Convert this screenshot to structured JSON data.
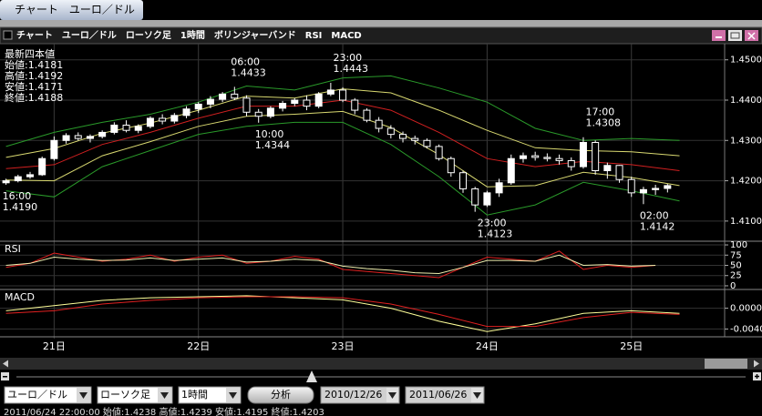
{
  "tab": "チャート　ユーロ／ドル",
  "window_title": "チャート　ユーロ／ドル　ローソク足　1時間　ボリンジャーバンド　RSI　MACD",
  "info": [
    "最新四本値",
    "始値:1.4181",
    "高値:1.4192",
    "安値:1.4171",
    "終値:1.4188"
  ],
  "toolbar": {
    "pair": "ユーロ／ドル",
    "chart_kind": "ローソク足",
    "interval": "1時間",
    "analyze": "分析",
    "from": "2010/12/26",
    "to": "2011/06/26"
  },
  "status": "2011/06/24 22:00:00 始値:1.4238 高値:1.4239 安値:1.4195 終値:1.4203",
  "chart_data": [
    {
      "type": "candlestick",
      "xlim": [
        -9,
        111.5
      ],
      "xticks": [
        {
          "value": 0,
          "label": "21日"
        },
        {
          "value": 24,
          "label": "22日"
        },
        {
          "value": 48,
          "label": "23日"
        },
        {
          "value": 72,
          "label": "24日"
        },
        {
          "value": 96,
          "label": "25日"
        }
      ],
      "ylim": [
        1.405,
        1.454
      ],
      "yticks": [
        {
          "value": 1.41,
          "label": "1.4100"
        },
        {
          "value": 1.42,
          "label": "1.4200"
        },
        {
          "value": 1.43,
          "label": "1.4300"
        },
        {
          "value": 1.44,
          "label": "1.4400"
        },
        {
          "value": 1.45,
          "label": "1.4500"
        }
      ],
      "grid": true,
      "up_color": "#ffffff",
      "down_color": "#000000",
      "x": [
        -8,
        -6,
        -4,
        -2,
        0,
        2,
        4,
        6,
        8,
        10,
        12,
        14,
        16,
        18,
        20,
        22,
        24,
        26,
        28,
        30,
        32,
        34,
        36,
        38,
        40,
        42,
        44,
        46,
        48,
        50,
        52,
        54,
        56,
        58,
        60,
        62,
        64,
        66,
        68,
        70,
        72,
        74,
        76,
        78,
        80,
        82,
        84,
        86,
        88,
        90,
        92,
        94,
        96,
        98,
        100,
        102
      ],
      "open": [
        1.4195,
        1.42,
        1.421,
        1.4215,
        1.4255,
        1.43,
        1.4312,
        1.4305,
        1.431,
        1.432,
        1.4338,
        1.4325,
        1.4335,
        1.4355,
        1.4348,
        1.4362,
        1.4378,
        1.439,
        1.4402,
        1.4415,
        1.4405,
        1.437,
        1.436,
        1.438,
        1.4392,
        1.44,
        1.4385,
        1.4415,
        1.4425,
        1.44,
        1.4375,
        1.435,
        1.433,
        1.4315,
        1.4305,
        1.43,
        1.4285,
        1.4255,
        1.422,
        1.418,
        1.414,
        1.417,
        1.4195,
        1.4255,
        1.4262,
        1.4258,
        1.4255,
        1.425,
        1.4235,
        1.4295,
        1.4225,
        1.4238,
        1.4203,
        1.417,
        1.4178,
        1.4181
      ],
      "high": [
        1.4205,
        1.4215,
        1.4222,
        1.426,
        1.431,
        1.4318,
        1.432,
        1.4315,
        1.4325,
        1.4345,
        1.435,
        1.434,
        1.436,
        1.4365,
        1.4368,
        1.4385,
        1.4395,
        1.441,
        1.442,
        1.4433,
        1.4412,
        1.4378,
        1.4385,
        1.4398,
        1.4405,
        1.4412,
        1.442,
        1.4443,
        1.4432,
        1.4405,
        1.438,
        1.4358,
        1.4338,
        1.4322,
        1.4312,
        1.4305,
        1.429,
        1.426,
        1.4225,
        1.4185,
        1.4175,
        1.4205,
        1.4265,
        1.427,
        1.4272,
        1.4268,
        1.4265,
        1.4258,
        1.4308,
        1.43,
        1.4245,
        1.4239,
        1.421,
        1.4185,
        1.419,
        1.4192
      ],
      "low": [
        1.419,
        1.4196,
        1.4205,
        1.4212,
        1.425,
        1.4292,
        1.43,
        1.4295,
        1.4305,
        1.4315,
        1.432,
        1.4318,
        1.433,
        1.434,
        1.4342,
        1.4355,
        1.4368,
        1.438,
        1.4395,
        1.44,
        1.436,
        1.4344,
        1.4355,
        1.4372,
        1.4385,
        1.4375,
        1.438,
        1.441,
        1.4395,
        1.4365,
        1.4345,
        1.432,
        1.4305,
        1.4295,
        1.429,
        1.428,
        1.425,
        1.421,
        1.417,
        1.4123,
        1.4135,
        1.416,
        1.419,
        1.4245,
        1.425,
        1.4248,
        1.424,
        1.4225,
        1.423,
        1.4215,
        1.4205,
        1.4195,
        1.416,
        1.4142,
        1.4165,
        1.4171
      ],
      "close": [
        1.42,
        1.421,
        1.4215,
        1.4255,
        1.43,
        1.4312,
        1.4305,
        1.431,
        1.432,
        1.4338,
        1.4325,
        1.4335,
        1.4355,
        1.4348,
        1.4362,
        1.4378,
        1.439,
        1.4402,
        1.4415,
        1.4405,
        1.437,
        1.436,
        1.438,
        1.4392,
        1.44,
        1.4385,
        1.4415,
        1.4425,
        1.44,
        1.4375,
        1.435,
        1.433,
        1.4315,
        1.4305,
        1.43,
        1.4285,
        1.4255,
        1.422,
        1.418,
        1.414,
        1.417,
        1.4195,
        1.4255,
        1.4262,
        1.4258,
        1.4255,
        1.425,
        1.4235,
        1.4295,
        1.4225,
        1.4238,
        1.4203,
        1.417,
        1.4178,
        1.4181,
        1.4188
      ],
      "series": [
        {
          "color": "#2a9a2a",
          "x": [
            -8,
            0,
            8,
            16,
            24,
            32,
            40,
            48,
            56,
            64,
            72,
            80,
            88,
            96,
            104
          ],
          "values": [
            1.4285,
            1.432,
            1.4345,
            1.4365,
            1.4395,
            1.4435,
            1.4425,
            1.4455,
            1.446,
            1.443,
            1.4395,
            1.433,
            1.43,
            1.4305,
            1.43
          ]
        },
        {
          "color": "#d8d870",
          "x": [
            -8,
            0,
            8,
            16,
            24,
            32,
            40,
            48,
            56,
            64,
            72,
            80,
            88,
            96,
            104
          ],
          "values": [
            1.4258,
            1.428,
            1.4318,
            1.4343,
            1.4375,
            1.441,
            1.4405,
            1.4428,
            1.4418,
            1.4375,
            1.4325,
            1.4282,
            1.4275,
            1.4272,
            1.4262
          ]
        },
        {
          "color": "#d02020",
          "x": [
            -8,
            0,
            8,
            16,
            24,
            32,
            40,
            48,
            56,
            64,
            72,
            80,
            88,
            96,
            104
          ],
          "values": [
            1.423,
            1.424,
            1.429,
            1.432,
            1.4355,
            1.4385,
            1.4385,
            1.44,
            1.4375,
            1.432,
            1.4255,
            1.4235,
            1.4248,
            1.424,
            1.4225
          ]
        },
        {
          "color": "#d8d870",
          "x": [
            -8,
            0,
            8,
            16,
            24,
            32,
            40,
            48,
            56,
            64,
            72,
            80,
            88,
            96,
            104
          ],
          "values": [
            1.4202,
            1.42,
            1.4262,
            1.4297,
            1.4335,
            1.436,
            1.4365,
            1.4372,
            1.4332,
            1.4265,
            1.4185,
            1.4188,
            1.4221,
            1.4208,
            1.4188
          ]
        },
        {
          "color": "#2a9a2a",
          "x": [
            -8,
            0,
            8,
            16,
            24,
            32,
            40,
            48,
            56,
            64,
            72,
            80,
            88,
            96,
            104
          ],
          "values": [
            1.4175,
            1.416,
            1.4235,
            1.4275,
            1.4315,
            1.4335,
            1.4345,
            1.4345,
            1.429,
            1.421,
            1.4115,
            1.414,
            1.4196,
            1.4175,
            1.415
          ]
        }
      ],
      "annotations": [
        {
          "time": "16:00",
          "price": {
            "value": 1.419,
            "label": "1.4190"
          },
          "x": -8
        },
        {
          "time": "06:00",
          "price": 1.4433,
          "x": 30
        },
        {
          "time": "10:00",
          "price": 1.4344,
          "x": 34
        },
        {
          "time": "23:00",
          "price": 1.4443,
          "x": 47
        },
        {
          "time": "23:00",
          "price": 1.4123,
          "x": 71
        },
        {
          "time": "17:00",
          "price": 1.4308,
          "x": 89
        },
        {
          "time": "02:00",
          "price": 1.4142,
          "x": 98
        }
      ]
    },
    {
      "type": "line",
      "label": "RSI",
      "xlim": [
        -9,
        111.5
      ],
      "ylim": [
        -9,
        109
      ],
      "yticks": [
        0,
        25,
        50,
        75,
        100
      ],
      "grid": true,
      "series": [
        {
          "color": "#e02020",
          "x": [
            -8,
            -4,
            0,
            4,
            8,
            12,
            16,
            20,
            24,
            28,
            32,
            36,
            40,
            44,
            48,
            52,
            56,
            60,
            64,
            68,
            72,
            76,
            80,
            84,
            88,
            92,
            96,
            100
          ],
          "values": [
            45,
            55,
            80,
            70,
            60,
            65,
            75,
            60,
            70,
            75,
            55,
            60,
            72,
            65,
            40,
            35,
            30,
            25,
            20,
            45,
            70,
            65,
            60,
            85,
            40,
            50,
            45,
            50
          ]
        },
        {
          "color": "#f0f0b0",
          "x": [
            -8,
            -4,
            0,
            4,
            8,
            12,
            16,
            20,
            24,
            28,
            32,
            36,
            40,
            44,
            48,
            52,
            56,
            60,
            64,
            68,
            72,
            76,
            80,
            84,
            88,
            92,
            96,
            100
          ],
          "values": [
            50,
            55,
            70,
            65,
            62,
            63,
            68,
            62,
            65,
            68,
            58,
            60,
            65,
            62,
            48,
            42,
            38,
            32,
            30,
            45,
            62,
            62,
            60,
            75,
            50,
            52,
            48,
            50
          ]
        }
      ]
    },
    {
      "type": "line",
      "label": "MACD",
      "xlim": [
        -9,
        111.5
      ],
      "ylim": [
        -0.0055,
        0.0036
      ],
      "yticks": [
        {
          "value": -0.004,
          "label": "-0.0040"
        },
        {
          "value": 0,
          "label": "0.0000"
        }
      ],
      "grid": true,
      "series": [
        {
          "color": "#ffff99",
          "x": [
            -8,
            0,
            8,
            16,
            24,
            32,
            40,
            48,
            56,
            64,
            72,
            80,
            88,
            96,
            104
          ],
          "values": [
            -0.0005,
            0.0005,
            0.0015,
            0.002,
            0.0022,
            0.0024,
            0.002,
            0.0016,
            0,
            -0.0025,
            -0.0045,
            -0.003,
            -0.001,
            -0.0005,
            -0.001
          ]
        },
        {
          "color": "#e02020",
          "x": [
            -8,
            0,
            8,
            16,
            24,
            32,
            40,
            48,
            56,
            64,
            72,
            80,
            88,
            96,
            104
          ],
          "values": [
            -0.001,
            -0.0005,
            0.0008,
            0.0015,
            0.002,
            0.0022,
            0.0022,
            0.002,
            0.0008,
            -0.0012,
            -0.0035,
            -0.0035,
            -0.0018,
            -0.0008,
            -0.0012
          ]
        }
      ]
    }
  ]
}
